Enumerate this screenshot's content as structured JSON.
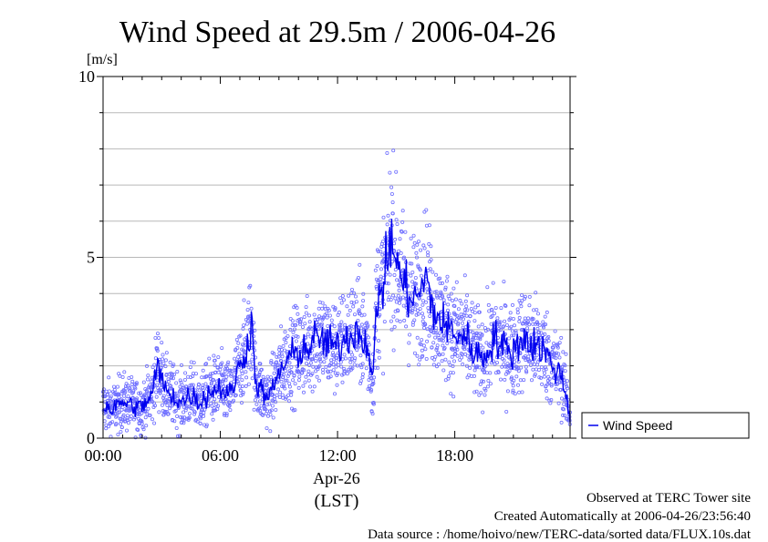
{
  "chart_data": {
    "type": "scatter",
    "title": "Wind Speed at 29.5m / 2006-04-26",
    "ylabel": "[m/s]",
    "ylim": [
      0,
      10
    ],
    "xlim_hours": [
      0,
      23.9
    ],
    "y_ticks": [
      {
        "value": 0,
        "label": "0"
      },
      {
        "value": 5,
        "label": "5"
      },
      {
        "value": 10,
        "label": "10"
      }
    ],
    "y_minor_grid": [
      1,
      2,
      3,
      4,
      6,
      7,
      8,
      9
    ],
    "x_ticks": [
      {
        "value": 0,
        "label": "00:00"
      },
      {
        "value": 6,
        "label": "06:00"
      },
      {
        "value": 12,
        "label": "12:00"
      },
      {
        "value": 18,
        "label": "18:00"
      }
    ],
    "date_label": "Apr-26",
    "timezone_label": "(LST)",
    "grid": true,
    "legend": {
      "position": "right",
      "entries": [
        "Wind Speed"
      ]
    },
    "series": [
      {
        "name": "Wind Speed",
        "color": "#0000ee",
        "scatter_color": "#6f6fff",
        "mean_profile": {
          "x": [
            0,
            0.5,
            1,
            1.5,
            2,
            2.5,
            2.8,
            3.2,
            3.5,
            4,
            4.5,
            5,
            5.5,
            6,
            6.5,
            7,
            7.3,
            7.6,
            7.8,
            8.2,
            8.5,
            9,
            9.5,
            10,
            10.5,
            11,
            11.5,
            12,
            12.5,
            13,
            13.5,
            13.8,
            14,
            14.3,
            14.6,
            14.8,
            15,
            15.5,
            16,
            16.5,
            17,
            17.5,
            18,
            18.5,
            19,
            19.5,
            20,
            20.5,
            21,
            21.5,
            22,
            22.5,
            23,
            23.5,
            23.9
          ],
          "y": [
            0.9,
            0.8,
            1.0,
            0.9,
            0.85,
            1.2,
            2.0,
            1.3,
            1.2,
            1.0,
            1.2,
            1.0,
            1.3,
            1.4,
            1.2,
            2.0,
            2.4,
            3.2,
            1.6,
            1.2,
            1.1,
            1.8,
            2.2,
            2.4,
            2.5,
            2.8,
            2.6,
            2.5,
            2.8,
            3.0,
            2.7,
            1.4,
            3.8,
            4.2,
            5.0,
            5.6,
            4.8,
            4.1,
            3.8,
            4.4,
            3.4,
            3.1,
            2.9,
            2.8,
            2.4,
            2.2,
            2.8,
            2.5,
            2.4,
            2.8,
            2.6,
            2.5,
            2.0,
            1.7,
            0.6
          ]
        }
      }
    ]
  },
  "footer": {
    "observed": "Observed at TERC Tower site",
    "created": "Created Automatically at 2006-04-26/23:56:40",
    "source": "Data source : /home/hoivo/new/TERC-data/sorted  data/FLUX.10s.dat"
  }
}
